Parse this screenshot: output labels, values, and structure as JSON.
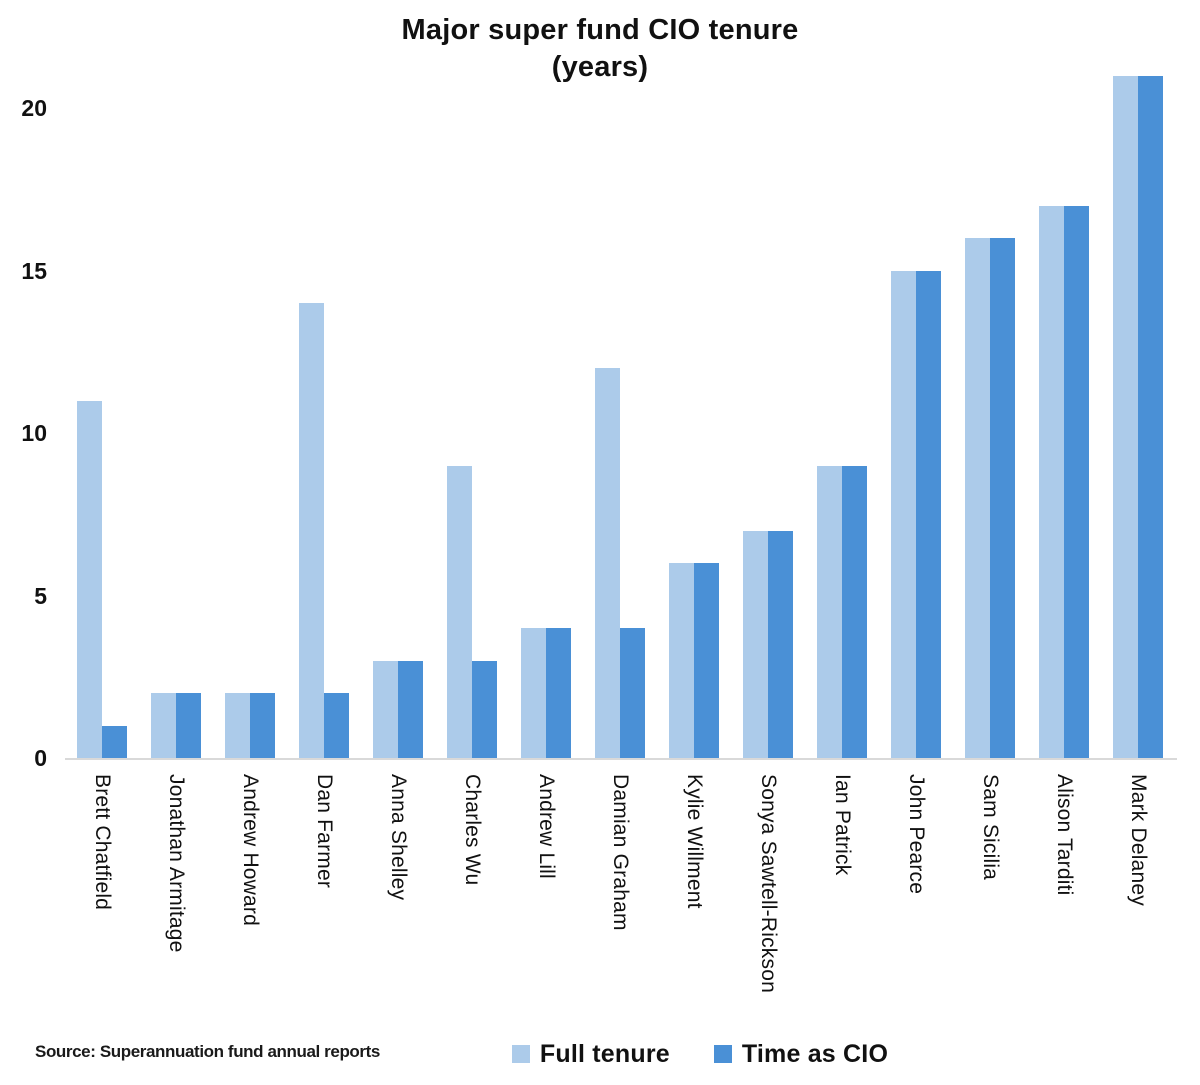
{
  "chart_data": {
    "type": "bar",
    "title": "Major super fund CIO tenure (years)",
    "title_lines": [
      "Major super fund CIO tenure",
      "(years)"
    ],
    "categories": [
      "Brett Chatfield",
      "Jonathan Armitage",
      "Andrew Howard",
      "Dan Farmer",
      "Anna Shelley",
      "Charles Wu",
      "Andrew Lill",
      "Damian Graham",
      "Kylie Willment",
      "Sonya Sawtell-Rickson",
      "Ian Patrick",
      "John Pearce",
      "Sam Sicilia",
      "Alison Tarditi",
      "Mark Delaney"
    ],
    "series": [
      {
        "name": "Full tenure",
        "color": "#ACCBEA",
        "values": [
          11,
          2,
          2,
          14,
          3,
          9,
          4,
          12,
          6,
          7,
          9,
          15,
          16,
          17,
          21
        ]
      },
      {
        "name": "Time as CIO",
        "color": "#4A90D6",
        "values": [
          1,
          2,
          2,
          2,
          3,
          3,
          4,
          4,
          6,
          7,
          9,
          15,
          16,
          17,
          21
        ]
      }
    ],
    "ylabel": "",
    "xlabel": "",
    "y_ticks": [
      0,
      5,
      10,
      15,
      20
    ],
    "ylim": [
      0,
      21
    ],
    "grid": false,
    "legend_position": "bottom-center",
    "axis_line_color": "#D9D9D9",
    "text_color": "#111111",
    "source_note": "Source: Superannuation fund annual reports"
  }
}
